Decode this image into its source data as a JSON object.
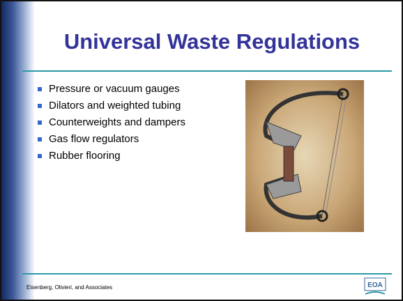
{
  "header": {
    "title": "Universal Waste Regulations"
  },
  "bullets": [
    "Pressure or vacuum gauges",
    "Dilators and weighted tubing",
    "Counterweights and dampers",
    "Gas flow regulators",
    "Rubber flooring"
  ],
  "footer": {
    "text": "Eisenberg, Olivieri, and Associates",
    "logo": "EOA"
  }
}
